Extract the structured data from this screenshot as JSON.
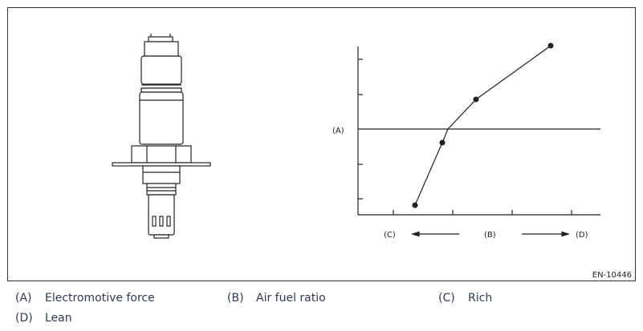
{
  "diagram": {
    "y_axis_label": "(A)",
    "x_axis_labels": [
      "(C)",
      "(B)",
      "(D)"
    ],
    "figure_id": "EN-10446"
  },
  "legend": [
    {
      "key": "(A)",
      "text": "Electromotive force"
    },
    {
      "key": "(B)",
      "text": "Air fuel ratio"
    },
    {
      "key": "(C)",
      "text": "Rich"
    },
    {
      "key": "(D)",
      "text": "Lean"
    }
  ]
}
